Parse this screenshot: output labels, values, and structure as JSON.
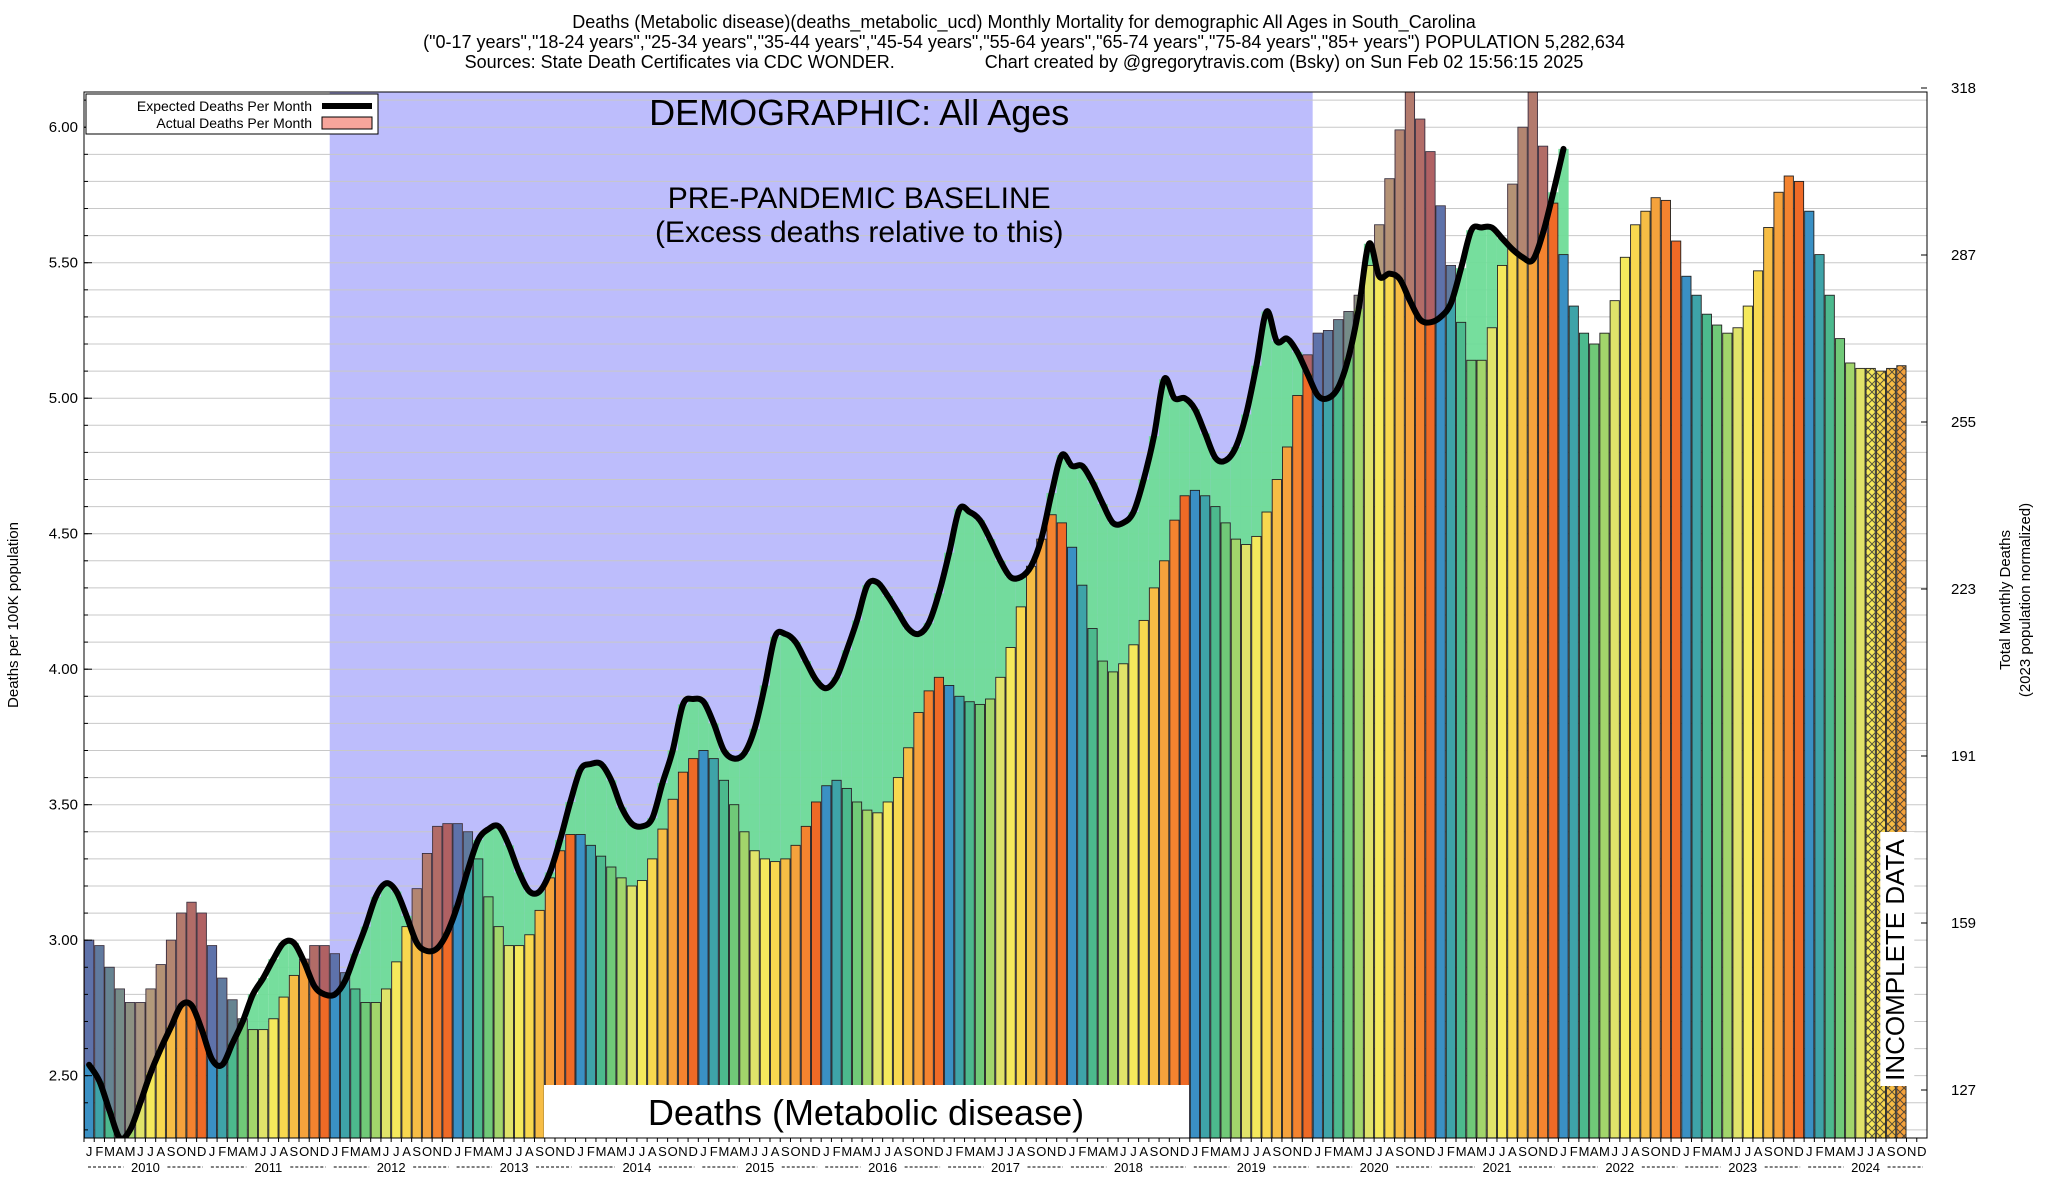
{
  "title": {
    "line1": "Deaths (Metabolic disease)(deaths_metabolic_ucd) Monthly Mortality for demographic All Ages in South_Carolina",
    "line2": "(\"0-17 years\",\"18-24 years\",\"25-34 years\",\"35-44 years\",\"45-54 years\",\"55-64 years\",\"65-74 years\",\"75-84 years\",\"85+ years\") POPULATION 5,282,634",
    "sources": "Sources: State Death Certificates via CDC WONDER.",
    "credit": "Chart created by @gregorytravis.com (Bsky) on Sun Feb 02 15:56:15 2025"
  },
  "chart_data": {
    "type": "bar",
    "start": "2010-01",
    "x_month_letters": [
      "J",
      "F",
      "M",
      "A",
      "M",
      "J",
      "J",
      "A",
      "S",
      "O",
      "N",
      "D"
    ],
    "years": [
      "2010",
      "2011",
      "2012",
      "2013",
      "2014",
      "2015",
      "2016",
      "2017",
      "2018",
      "2019",
      "2020",
      "2021",
      "2022",
      "2023",
      "2024"
    ],
    "ylabel": "Deaths per 100K population",
    "ylabel_right": "Total Monthly Deaths",
    "ylabel_right_sub": "(2023 population normalized)",
    "ylim": [
      2.27,
      6.13
    ],
    "yticks": [
      "2.50",
      "3.00",
      "3.50",
      "4.00",
      "4.50",
      "5.00",
      "5.50",
      "6.00"
    ],
    "yticks_right": [
      "127",
      "159",
      "191",
      "223",
      "255",
      "287",
      "318"
    ],
    "legend": {
      "position": "top-left",
      "expected": "Expected Deaths Per Month",
      "actual": "Actual Deaths Per Month"
    },
    "annotations": {
      "demographic": "DEMOGRAPHIC: All Ages",
      "baseline": "PRE-PANDEMIC BASELINE",
      "baseline_sub": "(Excess deaths relative to this)",
      "incomplete": "INCOMPLETE DATA",
      "bottom_label": "Deaths (Metabolic disease)"
    },
    "baseline_period": [
      "2012-01",
      "2019-12"
    ],
    "incomplete_from": "2024-07",
    "season_colors": [
      "#3a90c4",
      "#3ea3a8",
      "#4cb98d",
      "#70c978",
      "#a2d56b",
      "#e0e36a",
      "#f5e95c",
      "#f8d84f",
      "#f6bd45",
      "#f5a23c",
      "#f4832f",
      "#ef6a26"
    ],
    "colors": {
      "expected_line": "#000000",
      "excess": "#f7a59b",
      "deficit": "#6fdc98",
      "baseline_region": "#bdbdfc",
      "over_tint": "#7b5a95"
    },
    "series": [
      {
        "name": "Actual Deaths Per Month",
        "values": [
          3.0,
          2.98,
          2.9,
          2.82,
          2.77,
          2.77,
          2.82,
          2.91,
          3.0,
          3.1,
          3.14,
          3.1,
          2.98,
          2.86,
          2.78,
          2.71,
          2.67,
          2.67,
          2.71,
          2.79,
          2.87,
          2.93,
          2.98,
          2.98,
          2.95,
          2.88,
          2.82,
          2.77,
          2.77,
          2.82,
          2.92,
          3.05,
          3.19,
          3.32,
          3.42,
          3.43,
          3.43,
          3.4,
          3.3,
          3.16,
          3.05,
          2.98,
          2.98,
          3.02,
          3.11,
          3.23,
          3.33,
          3.39,
          3.39,
          3.35,
          3.31,
          3.27,
          3.23,
          3.2,
          3.22,
          3.3,
          3.41,
          3.52,
          3.62,
          3.67,
          3.7,
          3.67,
          3.59,
          3.5,
          3.4,
          3.33,
          3.3,
          3.29,
          3.3,
          3.35,
          3.42,
          3.51,
          3.57,
          3.59,
          3.56,
          3.51,
          3.48,
          3.47,
          3.51,
          3.6,
          3.71,
          3.84,
          3.92,
          3.97,
          3.94,
          3.9,
          3.88,
          3.87,
          3.89,
          3.97,
          4.08,
          4.23,
          4.38,
          4.48,
          4.57,
          4.54,
          4.45,
          4.31,
          4.15,
          4.03,
          3.99,
          4.02,
          4.09,
          4.18,
          4.3,
          4.4,
          4.55,
          4.64,
          4.66,
          4.64,
          4.6,
          4.54,
          4.48,
          4.46,
          4.49,
          4.58,
          4.7,
          4.82,
          5.01,
          5.16,
          5.24,
          5.25,
          5.29,
          5.32,
          5.38,
          5.49,
          5.64,
          5.81,
          5.99,
          6.13,
          6.03,
          5.91,
          5.71,
          5.49,
          5.28,
          5.14,
          5.14,
          5.26,
          5.49,
          5.79,
          6.0,
          6.13,
          5.93,
          5.72,
          5.53,
          5.34,
          5.24,
          5.2,
          5.24,
          5.36,
          5.52,
          5.64,
          5.69,
          5.74,
          5.73,
          5.58,
          5.45,
          5.38,
          5.31,
          5.27,
          5.24,
          5.26,
          5.34,
          5.47,
          5.63,
          5.76,
          5.82,
          5.8,
          5.69,
          5.53,
          5.38,
          5.22,
          5.13,
          5.11,
          5.11,
          5.1,
          5.11,
          5.12
        ]
      },
      {
        "name": "Expected Deaths Per Month",
        "values": [
          2.54,
          2.48,
          2.37,
          2.27,
          2.3,
          2.4,
          2.51,
          2.6,
          2.68,
          2.76,
          2.76,
          2.67,
          2.56,
          2.54,
          2.62,
          2.7,
          2.8,
          2.86,
          2.93,
          2.99,
          2.99,
          2.92,
          2.83,
          2.8,
          2.8,
          2.85,
          2.95,
          3.05,
          3.16,
          3.21,
          3.18,
          3.09,
          2.99,
          2.96,
          2.97,
          3.03,
          3.13,
          3.26,
          3.37,
          3.41,
          3.42,
          3.35,
          3.25,
          3.18,
          3.18,
          3.25,
          3.37,
          3.51,
          3.63,
          3.65,
          3.65,
          3.59,
          3.49,
          3.43,
          3.42,
          3.45,
          3.58,
          3.7,
          3.87,
          3.89,
          3.88,
          3.8,
          3.7,
          3.67,
          3.69,
          3.78,
          3.94,
          4.12,
          4.13,
          4.1,
          4.03,
          3.96,
          3.93,
          3.97,
          4.07,
          4.18,
          4.31,
          4.32,
          4.27,
          4.21,
          4.15,
          4.13,
          4.17,
          4.28,
          4.43,
          4.59,
          4.58,
          4.55,
          4.48,
          4.4,
          4.34,
          4.34,
          4.38,
          4.48,
          4.65,
          4.79,
          4.75,
          4.75,
          4.69,
          4.61,
          4.54,
          4.54,
          4.58,
          4.7,
          4.86,
          5.07,
          5.0,
          5.0,
          4.96,
          4.87,
          4.78,
          4.77,
          4.82,
          4.94,
          5.12,
          5.32,
          5.21,
          5.22,
          5.17,
          5.09,
          5.01,
          5.0,
          5.04,
          5.15,
          5.33,
          5.57,
          5.45,
          5.46,
          5.44,
          5.36,
          5.29,
          5.28,
          5.3,
          5.35,
          5.48,
          5.62,
          5.63,
          5.63,
          5.59,
          5.55,
          5.52,
          5.51,
          5.61,
          5.76,
          5.92
        ]
      }
    ]
  }
}
